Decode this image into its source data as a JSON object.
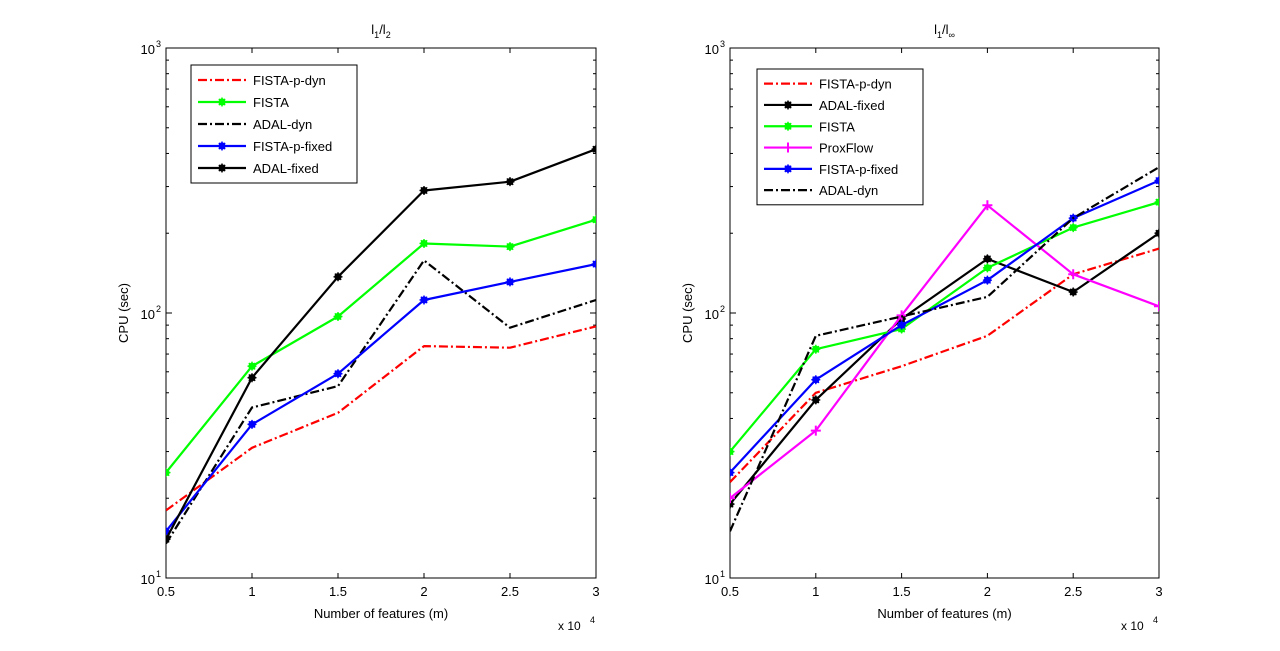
{
  "chart_data": [
    {
      "type": "line",
      "title": "l1/l2",
      "title_parts": {
        "main": "l",
        "sub1": "1",
        "slash": "/l",
        "sub2": "2"
      },
      "xlabel": "Number of features (m)",
      "ylabel": "CPU (sec)",
      "x_multiplier": "x 10",
      "x_multiplier_exp": "4",
      "x": [
        0.5,
        1,
        1.5,
        2,
        2.5,
        3
      ],
      "xlim": [
        0.5,
        3
      ],
      "ylim": [
        10,
        1000
      ],
      "yscale": "log",
      "xticks": [
        "0.5",
        "1",
        "1.5",
        "2",
        "2.5",
        "3"
      ],
      "yticks": [
        {
          "base": "10",
          "exp": "1"
        },
        {
          "base": "10",
          "exp": "2"
        },
        {
          "base": "10",
          "exp": "3"
        }
      ],
      "legend_position": "top-left",
      "series": [
        {
          "name": "FISTA-p-dyn",
          "color": "#ff0000",
          "dash": "dashdot",
          "marker": "none",
          "values": [
            18,
            31,
            42,
            75,
            74,
            89
          ]
        },
        {
          "name": "FISTA",
          "color": "#00ff00",
          "dash": "solid",
          "marker": "asterisk",
          "values": [
            25,
            63,
            97,
            183,
            178,
            225
          ]
        },
        {
          "name": "ADAL-dyn",
          "color": "#000000",
          "dash": "dashdot",
          "marker": "none",
          "values": [
            13.5,
            44,
            53,
            158,
            88,
            112
          ]
        },
        {
          "name": "FISTA-p-fixed",
          "color": "#0000ff",
          "dash": "solid",
          "marker": "asterisk",
          "values": [
            15,
            38,
            59,
            112,
            131,
            153
          ]
        },
        {
          "name": "ADAL-fixed",
          "color": "#000000",
          "dash": "solid",
          "marker": "asterisk",
          "values": [
            14,
            57,
            137,
            290,
            313,
            415
          ]
        }
      ]
    },
    {
      "type": "line",
      "title": "l1/l∞",
      "title_parts": {
        "main": "l",
        "sub1": "1",
        "slash": "/l",
        "sub2": "∞"
      },
      "xlabel": "Number of features (m)",
      "ylabel": "CPU (sec)",
      "x_multiplier": "x 10",
      "x_multiplier_exp": "4",
      "x": [
        0.5,
        1,
        1.5,
        2,
        2.5,
        3
      ],
      "xlim": [
        0.5,
        3
      ],
      "ylim": [
        10,
        1000
      ],
      "yscale": "log",
      "xticks": [
        "0.5",
        "1",
        "1.5",
        "2",
        "2.5",
        "3"
      ],
      "yticks": [
        {
          "base": "10",
          "exp": "1"
        },
        {
          "base": "10",
          "exp": "2"
        },
        {
          "base": "10",
          "exp": "3"
        }
      ],
      "legend_position": "top-left",
      "series": [
        {
          "name": "FISTA-p-dyn",
          "color": "#ff0000",
          "dash": "dashdot",
          "marker": "none",
          "values": [
            23,
            50,
            63,
            82,
            140,
            175
          ]
        },
        {
          "name": "ADAL-fixed",
          "color": "#000000",
          "dash": "solid",
          "marker": "asterisk",
          "values": [
            19,
            47,
            95,
            160,
            120,
            200
          ]
        },
        {
          "name": "FISTA",
          "color": "#00ff00",
          "dash": "solid",
          "marker": "asterisk",
          "values": [
            30,
            73,
            87,
            148,
            210,
            262
          ]
        },
        {
          "name": "ProxFlow",
          "color": "#ff00ff",
          "dash": "solid",
          "marker": "plus",
          "values": [
            20,
            36,
            98,
            255,
            140,
            106
          ]
        },
        {
          "name": "FISTA-p-fixed",
          "color": "#0000ff",
          "dash": "solid",
          "marker": "asterisk",
          "values": [
            25,
            56,
            90,
            133,
            228,
            316
          ]
        },
        {
          "name": "ADAL-dyn",
          "color": "#000000",
          "dash": "dashdot",
          "marker": "none",
          "values": [
            15,
            82,
            97,
            115,
            228,
            355
          ]
        }
      ]
    }
  ]
}
